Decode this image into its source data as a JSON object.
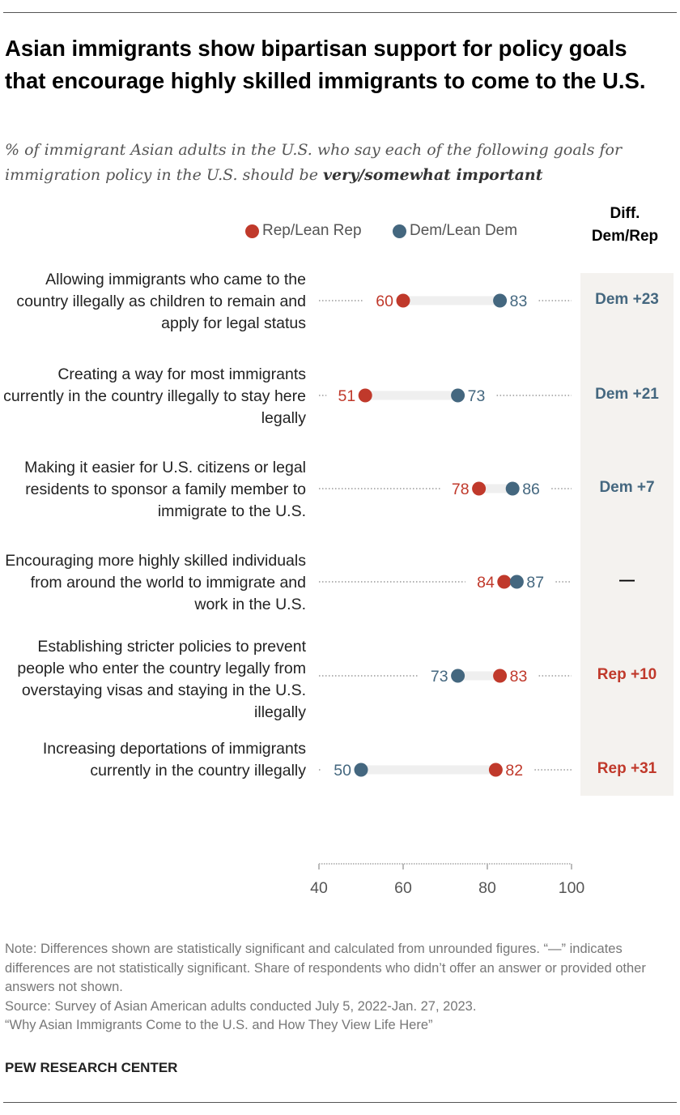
{
  "title": "Asian immigrants show bipartisan support for policy goals that encourage highly skilled immigrants to come to the U.S.",
  "subtitle_prefix": "% of immigrant Asian adults in the U.S. who say each of the following goals for immigration policy in the U.S. should be ",
  "subtitle_emphasis": "very/somewhat important",
  "diff_header_line1": "Diff.",
  "diff_header_line2": "Dem/Rep",
  "colors": {
    "rep": "#c0392b",
    "dem": "#44677f",
    "bar": "#efefef",
    "diff_panel": "#f4f2ef"
  },
  "chart_data": {
    "type": "dot",
    "xlim": [
      40,
      100
    ],
    "xticks": [
      "40",
      "60",
      "80",
      "100"
    ],
    "legend": [
      "Rep/Lean Rep",
      "Dem/Lean Dem"
    ],
    "legend_placement": "top",
    "categories": [
      "Allowing immigrants who came to the country illegally as children to remain and apply for legal status",
      "Creating a way for most immigrants currently in the country illegally to stay here legally",
      "Making it easier for U.S. citizens or legal residents to sponsor a family member to immigrate to the U.S.",
      "Encouraging more highly skilled individuals from around the world to immigrate and work in the U.S.",
      "Establishing stricter policies to prevent people who enter the country legally from overstaying visas and staying in the U.S. illegally",
      "Increasing deportations of immigrants currently in the country illegally"
    ],
    "series": [
      {
        "name": "Rep/Lean Rep",
        "values": [
          60,
          51,
          78,
          84,
          83,
          82
        ]
      },
      {
        "name": "Dem/Lean Dem",
        "values": [
          83,
          73,
          86,
          87,
          73,
          50
        ]
      }
    ],
    "diffs": [
      {
        "text": "Dem +23",
        "party": "dem"
      },
      {
        "text": "Dem +21",
        "party": "dem"
      },
      {
        "text": "Dem +7",
        "party": "dem"
      },
      {
        "text": "—",
        "party": "none"
      },
      {
        "text": "Rep +10",
        "party": "rep"
      },
      {
        "text": "Rep +31",
        "party": "rep"
      }
    ]
  },
  "notes": [
    "Note: Differences shown are statistically significant and calculated from unrounded figures. “—” indicates differences are not statistically significant. Share of respondents who didn’t offer an answer or provided other answers not shown.",
    "Source: Survey of Asian American adults conducted July 5, 2022-Jan. 27, 2023.",
    "“Why Asian Immigrants Come to the U.S. and How They View Life Here”"
  ],
  "brand": "PEW RESEARCH CENTER"
}
